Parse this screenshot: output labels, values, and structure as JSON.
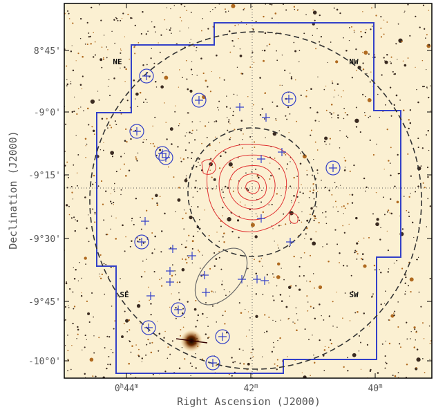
{
  "y_ticks": [
    "8°45'",
    "-9°0'",
    "-9°15'",
    "-9°30'",
    "-9°45'",
    "-10°0'"
  ],
  "x_ticks": [
    [
      "0",
      "h",
      "44",
      "m"
    ],
    [
      "42",
      "m"
    ],
    [
      "40",
      "m"
    ]
  ],
  "x_axis_title": "Right Ascension (J2000)",
  "y_axis_title": "Declination (J2000)",
  "regions": [
    "NE",
    "NW",
    "SE",
    "SW"
  ]
}
